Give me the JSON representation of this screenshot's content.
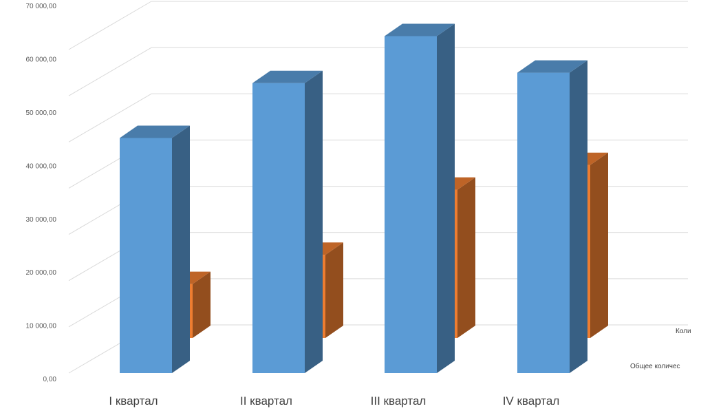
{
  "chart_data": {
    "type": "bar",
    "style": "3d-clustered-column",
    "categories": [
      "I квартал",
      "II квартал",
      "III квартал",
      "IV квартал"
    ],
    "y_tick_labels": [
      "0,00",
      "10 000,00",
      "20 000,00",
      "30 000,00",
      "40 000,00",
      "50 000,00",
      "60 000,00",
      "70 000,00"
    ],
    "ylim": [
      0,
      70000
    ],
    "grid": true,
    "series_label_placement": "right, beside depth axis",
    "series": [
      {
        "name": "Общее количес",
        "color": "#5b9bd5",
        "values": [
          45000,
          55500,
          64500,
          57500
        ]
      },
      {
        "name": "Коли",
        "color": "#ed7d31",
        "values": [
          12000,
          18500,
          33000,
          38500
        ]
      }
    ]
  }
}
